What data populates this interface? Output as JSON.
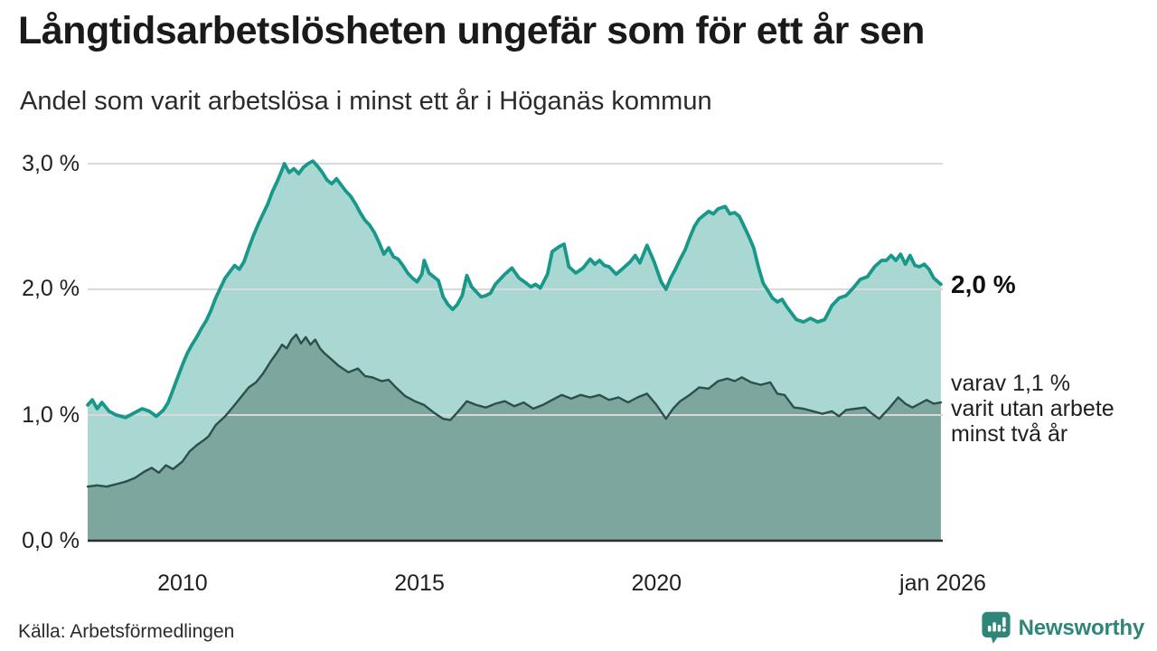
{
  "header": {
    "title": "Långtidsarbetslösheten ungefär som för ett år sen",
    "subtitle": "Andel som varit arbetslösa i minst ett år i Höganäs kommun"
  },
  "footer": {
    "source": "Källa: Arbetsförmedlingen",
    "brand": "Newsworthy"
  },
  "chart_data": {
    "type": "area",
    "title": "Långtidsarbetslösheten ungefär som för ett år sen",
    "subtitle": "Andel som varit arbetslösa i minst ett år i Höganäs kommun",
    "unit": "%",
    "x_domain": [
      2008.0,
      2026.04
    ],
    "ylim": [
      0,
      3.2
    ],
    "grid": "horizontal",
    "legend_position": "none",
    "y_ticks": [
      {
        "v": 3.0,
        "label": "3,0 %"
      },
      {
        "v": 2.0,
        "label": "2,0 %"
      },
      {
        "v": 1.0,
        "label": "1,0 %"
      },
      {
        "v": 0.0,
        "label": "0,0 %"
      }
    ],
    "x_ticks": [
      {
        "t": 2010.0,
        "label": "2010"
      },
      {
        "t": 2015.0,
        "label": "2015"
      },
      {
        "t": 2020.0,
        "label": "2020"
      },
      {
        "t": 2026.04,
        "label": "jan 2026"
      }
    ],
    "colors": {
      "total_line": "#17988a",
      "total_fill": "#a9d7d1",
      "two_year_line": "#2d4f4b",
      "two_year_fill": "#7da69f",
      "grid": "#d9d9d9",
      "axis_line": "#2e2e2e",
      "brand": "#2f8578"
    },
    "annotations": {
      "total_end_label": "2,0 %",
      "two_year_line1": "varav 1,1 %",
      "two_year_line2": "varit utan arbete",
      "two_year_line3": "minst två år"
    },
    "series": [
      {
        "name": "Andel arbetslösa minst ett år",
        "end_value": 2.0,
        "points": [
          [
            2008.0,
            1.08
          ],
          [
            2008.1,
            1.12
          ],
          [
            2008.2,
            1.05
          ],
          [
            2008.3,
            1.1
          ],
          [
            2008.45,
            1.03
          ],
          [
            2008.6,
            1.0
          ],
          [
            2008.8,
            0.98
          ],
          [
            2009.0,
            1.02
          ],
          [
            2009.15,
            1.05
          ],
          [
            2009.3,
            1.03
          ],
          [
            2009.45,
            0.99
          ],
          [
            2009.6,
            1.04
          ],
          [
            2009.7,
            1.1
          ],
          [
            2009.8,
            1.2
          ],
          [
            2009.9,
            1.3
          ],
          [
            2010.0,
            1.4
          ],
          [
            2010.1,
            1.49
          ],
          [
            2010.2,
            1.56
          ],
          [
            2010.3,
            1.62
          ],
          [
            2010.4,
            1.69
          ],
          [
            2010.5,
            1.75
          ],
          [
            2010.6,
            1.83
          ],
          [
            2010.7,
            1.93
          ],
          [
            2010.8,
            2.01
          ],
          [
            2010.9,
            2.09
          ],
          [
            2011.0,
            2.14
          ],
          [
            2011.1,
            2.19
          ],
          [
            2011.2,
            2.16
          ],
          [
            2011.3,
            2.22
          ],
          [
            2011.4,
            2.33
          ],
          [
            2011.5,
            2.43
          ],
          [
            2011.6,
            2.52
          ],
          [
            2011.7,
            2.6
          ],
          [
            2011.8,
            2.68
          ],
          [
            2011.9,
            2.78
          ],
          [
            2012.0,
            2.86
          ],
          [
            2012.1,
            2.95
          ],
          [
            2012.15,
            3.0
          ],
          [
            2012.25,
            2.93
          ],
          [
            2012.35,
            2.96
          ],
          [
            2012.45,
            2.92
          ],
          [
            2012.55,
            2.97
          ],
          [
            2012.65,
            3.0
          ],
          [
            2012.75,
            3.02
          ],
          [
            2012.85,
            2.98
          ],
          [
            2012.95,
            2.93
          ],
          [
            2013.05,
            2.87
          ],
          [
            2013.15,
            2.84
          ],
          [
            2013.25,
            2.88
          ],
          [
            2013.35,
            2.83
          ],
          [
            2013.45,
            2.78
          ],
          [
            2013.55,
            2.74
          ],
          [
            2013.65,
            2.68
          ],
          [
            2013.75,
            2.61
          ],
          [
            2013.85,
            2.55
          ],
          [
            2013.95,
            2.51
          ],
          [
            2014.05,
            2.45
          ],
          [
            2014.15,
            2.37
          ],
          [
            2014.25,
            2.28
          ],
          [
            2014.35,
            2.33
          ],
          [
            2014.45,
            2.26
          ],
          [
            2014.55,
            2.24
          ],
          [
            2014.65,
            2.19
          ],
          [
            2014.75,
            2.13
          ],
          [
            2014.85,
            2.09
          ],
          [
            2014.95,
            2.06
          ],
          [
            2015.05,
            2.12
          ],
          [
            2015.1,
            2.23
          ],
          [
            2015.2,
            2.13
          ],
          [
            2015.3,
            2.1
          ],
          [
            2015.4,
            2.07
          ],
          [
            2015.5,
            1.94
          ],
          [
            2015.6,
            1.88
          ],
          [
            2015.7,
            1.84
          ],
          [
            2015.8,
            1.88
          ],
          [
            2015.9,
            1.95
          ],
          [
            2016.0,
            2.11
          ],
          [
            2016.1,
            2.02
          ],
          [
            2016.2,
            1.98
          ],
          [
            2016.3,
            1.94
          ],
          [
            2016.4,
            1.95
          ],
          [
            2016.5,
            1.97
          ],
          [
            2016.6,
            2.04
          ],
          [
            2016.8,
            2.12
          ],
          [
            2016.95,
            2.17
          ],
          [
            2017.1,
            2.09
          ],
          [
            2017.25,
            2.05
          ],
          [
            2017.35,
            2.02
          ],
          [
            2017.45,
            2.04
          ],
          [
            2017.55,
            2.01
          ],
          [
            2017.7,
            2.12
          ],
          [
            2017.8,
            2.3
          ],
          [
            2017.95,
            2.34
          ],
          [
            2018.05,
            2.36
          ],
          [
            2018.15,
            2.18
          ],
          [
            2018.3,
            2.13
          ],
          [
            2018.45,
            2.17
          ],
          [
            2018.6,
            2.24
          ],
          [
            2018.7,
            2.2
          ],
          [
            2018.8,
            2.23
          ],
          [
            2018.9,
            2.19
          ],
          [
            2019.0,
            2.18
          ],
          [
            2019.15,
            2.12
          ],
          [
            2019.3,
            2.17
          ],
          [
            2019.45,
            2.22
          ],
          [
            2019.55,
            2.27
          ],
          [
            2019.65,
            2.21
          ],
          [
            2019.8,
            2.35
          ],
          [
            2019.95,
            2.22
          ],
          [
            2020.1,
            2.06
          ],
          [
            2020.2,
            2.0
          ],
          [
            2020.3,
            2.09
          ],
          [
            2020.4,
            2.16
          ],
          [
            2020.5,
            2.24
          ],
          [
            2020.6,
            2.31
          ],
          [
            2020.7,
            2.41
          ],
          [
            2020.8,
            2.5
          ],
          [
            2020.9,
            2.56
          ],
          [
            2021.0,
            2.59
          ],
          [
            2021.1,
            2.62
          ],
          [
            2021.2,
            2.6
          ],
          [
            2021.3,
            2.64
          ],
          [
            2021.45,
            2.66
          ],
          [
            2021.55,
            2.6
          ],
          [
            2021.65,
            2.61
          ],
          [
            2021.75,
            2.58
          ],
          [
            2021.85,
            2.5
          ],
          [
            2021.95,
            2.42
          ],
          [
            2022.05,
            2.33
          ],
          [
            2022.15,
            2.18
          ],
          [
            2022.25,
            2.05
          ],
          [
            2022.35,
            1.99
          ],
          [
            2022.45,
            1.93
          ],
          [
            2022.55,
            1.9
          ],
          [
            2022.65,
            1.92
          ],
          [
            2022.75,
            1.86
          ],
          [
            2022.85,
            1.81
          ],
          [
            2022.95,
            1.76
          ],
          [
            2023.1,
            1.74
          ],
          [
            2023.25,
            1.77
          ],
          [
            2023.4,
            1.74
          ],
          [
            2023.55,
            1.76
          ],
          [
            2023.7,
            1.87
          ],
          [
            2023.85,
            1.93
          ],
          [
            2024.0,
            1.95
          ],
          [
            2024.15,
            2.01
          ],
          [
            2024.3,
            2.08
          ],
          [
            2024.45,
            2.1
          ],
          [
            2024.6,
            2.18
          ],
          [
            2024.75,
            2.23
          ],
          [
            2024.85,
            2.23
          ],
          [
            2024.95,
            2.27
          ],
          [
            2025.05,
            2.23
          ],
          [
            2025.15,
            2.28
          ],
          [
            2025.25,
            2.2
          ],
          [
            2025.35,
            2.27
          ],
          [
            2025.45,
            2.19
          ],
          [
            2025.55,
            2.18
          ],
          [
            2025.65,
            2.2
          ],
          [
            2025.75,
            2.16
          ],
          [
            2025.85,
            2.09
          ],
          [
            2026.0,
            2.04
          ]
        ]
      },
      {
        "name": "varav utan arbete minst två år",
        "end_value": 1.1,
        "points": [
          [
            2008.0,
            0.43
          ],
          [
            2008.2,
            0.44
          ],
          [
            2008.4,
            0.43
          ],
          [
            2008.6,
            0.45
          ],
          [
            2008.8,
            0.47
          ],
          [
            2009.0,
            0.5
          ],
          [
            2009.2,
            0.55
          ],
          [
            2009.35,
            0.58
          ],
          [
            2009.5,
            0.54
          ],
          [
            2009.65,
            0.6
          ],
          [
            2009.8,
            0.57
          ],
          [
            2010.0,
            0.63
          ],
          [
            2010.15,
            0.71
          ],
          [
            2010.3,
            0.76
          ],
          [
            2010.45,
            0.8
          ],
          [
            2010.55,
            0.83
          ],
          [
            2010.7,
            0.92
          ],
          [
            2010.9,
            0.99
          ],
          [
            2011.1,
            1.08
          ],
          [
            2011.25,
            1.15
          ],
          [
            2011.4,
            1.22
          ],
          [
            2011.55,
            1.26
          ],
          [
            2011.7,
            1.33
          ],
          [
            2011.85,
            1.42
          ],
          [
            2012.0,
            1.5
          ],
          [
            2012.1,
            1.56
          ],
          [
            2012.2,
            1.53
          ],
          [
            2012.3,
            1.6
          ],
          [
            2012.4,
            1.64
          ],
          [
            2012.5,
            1.57
          ],
          [
            2012.6,
            1.62
          ],
          [
            2012.7,
            1.56
          ],
          [
            2012.8,
            1.6
          ],
          [
            2012.9,
            1.53
          ],
          [
            2013.0,
            1.49
          ],
          [
            2013.15,
            1.44
          ],
          [
            2013.3,
            1.39
          ],
          [
            2013.5,
            1.34
          ],
          [
            2013.7,
            1.37
          ],
          [
            2013.85,
            1.31
          ],
          [
            2014.0,
            1.3
          ],
          [
            2014.2,
            1.27
          ],
          [
            2014.35,
            1.28
          ],
          [
            2014.5,
            1.22
          ],
          [
            2014.7,
            1.15
          ],
          [
            2014.9,
            1.11
          ],
          [
            2015.1,
            1.08
          ],
          [
            2015.3,
            1.02
          ],
          [
            2015.5,
            0.97
          ],
          [
            2015.65,
            0.96
          ],
          [
            2015.8,
            1.02
          ],
          [
            2016.0,
            1.11
          ],
          [
            2016.2,
            1.08
          ],
          [
            2016.4,
            1.06
          ],
          [
            2016.6,
            1.09
          ],
          [
            2016.8,
            1.11
          ],
          [
            2017.0,
            1.07
          ],
          [
            2017.2,
            1.1
          ],
          [
            2017.4,
            1.05
          ],
          [
            2017.6,
            1.08
          ],
          [
            2017.8,
            1.12
          ],
          [
            2018.0,
            1.16
          ],
          [
            2018.2,
            1.13
          ],
          [
            2018.4,
            1.16
          ],
          [
            2018.6,
            1.14
          ],
          [
            2018.8,
            1.16
          ],
          [
            2019.0,
            1.12
          ],
          [
            2019.2,
            1.14
          ],
          [
            2019.4,
            1.1
          ],
          [
            2019.6,
            1.14
          ],
          [
            2019.8,
            1.17
          ],
          [
            2020.0,
            1.08
          ],
          [
            2020.2,
            0.97
          ],
          [
            2020.35,
            1.05
          ],
          [
            2020.5,
            1.11
          ],
          [
            2020.7,
            1.16
          ],
          [
            2020.9,
            1.22
          ],
          [
            2021.1,
            1.21
          ],
          [
            2021.3,
            1.27
          ],
          [
            2021.5,
            1.29
          ],
          [
            2021.65,
            1.27
          ],
          [
            2021.8,
            1.3
          ],
          [
            2022.0,
            1.26
          ],
          [
            2022.2,
            1.24
          ],
          [
            2022.4,
            1.26
          ],
          [
            2022.55,
            1.17
          ],
          [
            2022.7,
            1.16
          ],
          [
            2022.9,
            1.06
          ],
          [
            2023.1,
            1.05
          ],
          [
            2023.3,
            1.03
          ],
          [
            2023.5,
            1.01
          ],
          [
            2023.7,
            1.03
          ],
          [
            2023.85,
            0.99
          ],
          [
            2024.0,
            1.04
          ],
          [
            2024.2,
            1.05
          ],
          [
            2024.4,
            1.06
          ],
          [
            2024.55,
            1.01
          ],
          [
            2024.7,
            0.97
          ],
          [
            2024.9,
            1.05
          ],
          [
            2025.1,
            1.14
          ],
          [
            2025.25,
            1.09
          ],
          [
            2025.4,
            1.06
          ],
          [
            2025.55,
            1.09
          ],
          [
            2025.7,
            1.12
          ],
          [
            2025.85,
            1.09
          ],
          [
            2026.0,
            1.1
          ]
        ]
      }
    ]
  }
}
